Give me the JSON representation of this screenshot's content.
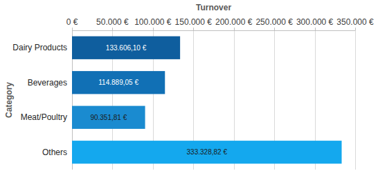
{
  "chart_data": {
    "type": "bar",
    "orientation": "horizontal",
    "xlabel": "Turnover",
    "ylabel": "Category",
    "categories": [
      "Dairy Products",
      "Beverages",
      "Meat/Poultry",
      "Others"
    ],
    "values": [
      133606.1,
      114889.05,
      90351.81,
      333328.82
    ],
    "value_labels": [
      "133.606,10 €",
      "114.889,05 €",
      "90.351,81 €",
      "333.328,82 €"
    ],
    "colors": [
      "#0f5e9e",
      "#1170b5",
      "#1a8bd0",
      "#14a8ee"
    ],
    "xlim": [
      0,
      350000
    ],
    "xticks": [
      {
        "value": 0,
        "label": "0 €"
      },
      {
        "value": 50000,
        "label": "50.000 €"
      },
      {
        "value": 100000,
        "label": "100.000 €"
      },
      {
        "value": 150000,
        "label": "150.000 €"
      },
      {
        "value": 200000,
        "label": "200.000 €"
      },
      {
        "value": 250000,
        "label": "250.000 €"
      },
      {
        "value": 300000,
        "label": "300.000 €"
      },
      {
        "value": 350000,
        "label": "350.000 €"
      }
    ],
    "grid": true,
    "data_labels": true
  }
}
